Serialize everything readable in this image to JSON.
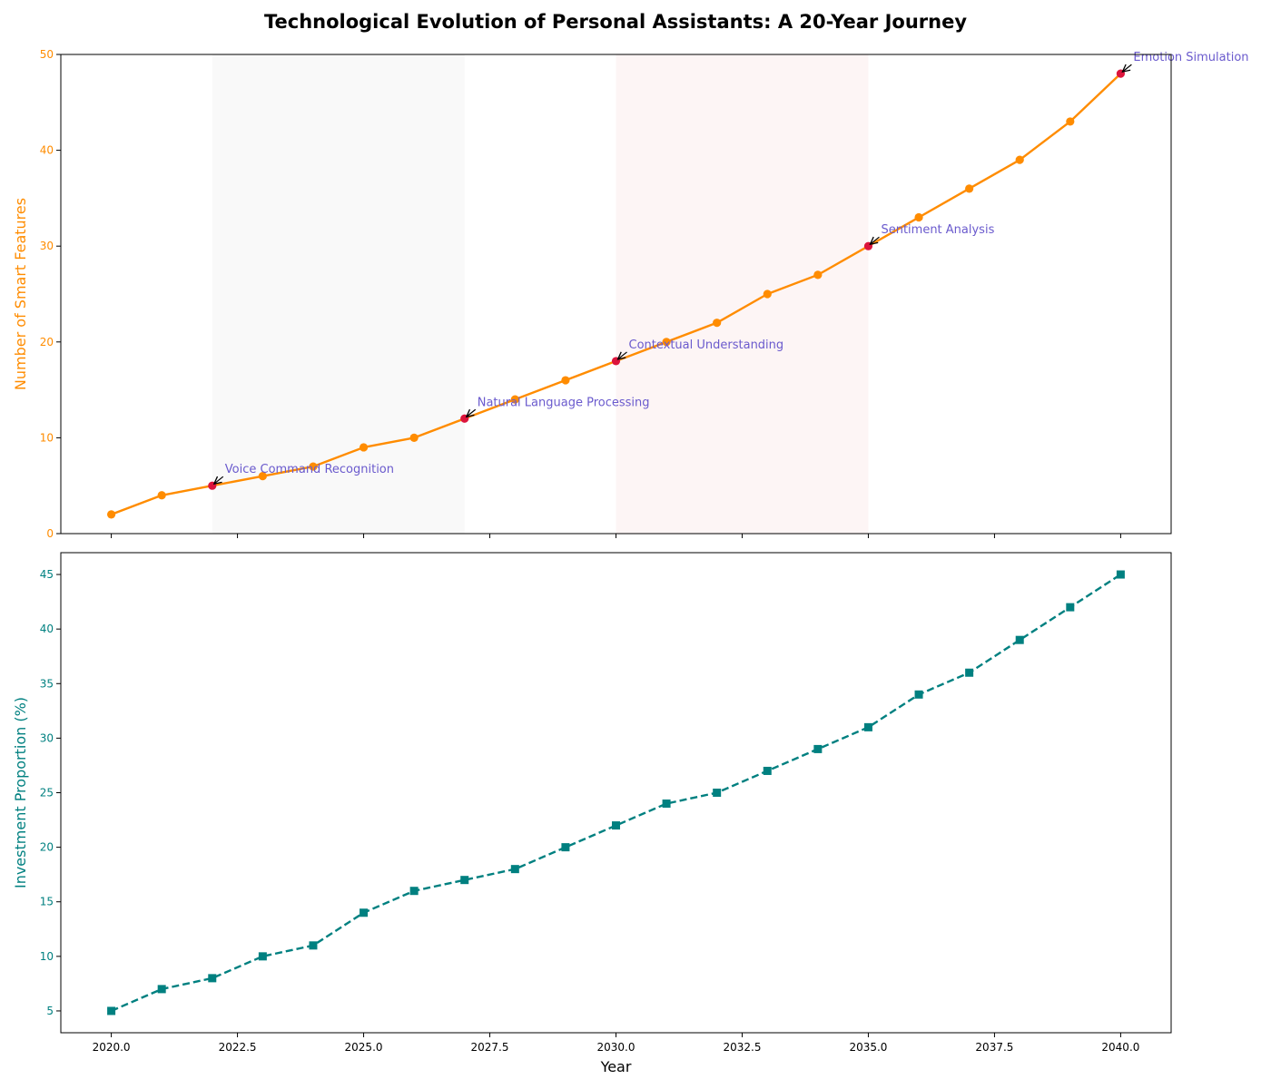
{
  "chart_data": [
    {
      "type": "line",
      "title": "Technological Evolution of Personal Assistants: A 20-Year Journey",
      "xlabel": "",
      "ylabel": "Number of Smart Features",
      "ylabel_color": "#ff8c00",
      "xlim": [
        2019,
        2041
      ],
      "ylim": [
        0,
        50
      ],
      "x_ticks": [
        2020.0,
        2022.5,
        2025.0,
        2027.5,
        2030.0,
        2032.5,
        2035.0,
        2037.5,
        2040.0
      ],
      "x_tick_labels_shown": false,
      "y_ticks": [
        0,
        10,
        20,
        30,
        40,
        50
      ],
      "y_tick_labels": [
        "0",
        "10",
        "20",
        "30",
        "40",
        "50"
      ],
      "grid": false,
      "x": [
        2020,
        2021,
        2022,
        2023,
        2024,
        2025,
        2026,
        2027,
        2028,
        2029,
        2030,
        2031,
        2032,
        2033,
        2034,
        2035,
        2036,
        2037,
        2038,
        2039,
        2040
      ],
      "series": [
        {
          "values": [
            2,
            4,
            5,
            6,
            7,
            9,
            10,
            12,
            14,
            16,
            18,
            20,
            22,
            25,
            27,
            30,
            33,
            36,
            39,
            43,
            48
          ],
          "color": "#ff8c00",
          "marker": "circle",
          "linestyle": "solid"
        }
      ],
      "highlight_color": "#dc143c",
      "shaded_spans": [
        {
          "x_start": 2022,
          "x_end": 2027,
          "color": "#d3d3d3"
        },
        {
          "x_start": 2030,
          "x_end": 2035,
          "color": "#f4b8b8"
        }
      ],
      "annotations": [
        {
          "x": 2022,
          "y": 5,
          "text": "Voice Command Recognition"
        },
        {
          "x": 2027,
          "y": 12,
          "text": "Natural Language Processing"
        },
        {
          "x": 2030,
          "y": 18,
          "text": "Contextual Understanding"
        },
        {
          "x": 2035,
          "y": 30,
          "text": "Sentiment Analysis"
        },
        {
          "x": 2040,
          "y": 48,
          "text": "Emotion Simulation"
        }
      ],
      "annotation_color": "#6a5acd"
    },
    {
      "type": "line",
      "title": "",
      "xlabel": "Year",
      "ylabel": "Investment Proportion (%)",
      "ylabel_color": "#008080",
      "xlim": [
        2019,
        2041
      ],
      "ylim": [
        3,
        47
      ],
      "x_ticks": [
        2020.0,
        2022.5,
        2025.0,
        2027.5,
        2030.0,
        2032.5,
        2035.0,
        2037.5,
        2040.0
      ],
      "x_tick_labels": [
        "2020.0",
        "2022.5",
        "2025.0",
        "2027.5",
        "2030.0",
        "2032.5",
        "2035.0",
        "2037.5",
        "2040.0"
      ],
      "x_tick_labels_shown": true,
      "y_ticks": [
        5,
        10,
        15,
        20,
        25,
        30,
        35,
        40,
        45
      ],
      "y_tick_labels": [
        "5",
        "10",
        "15",
        "20",
        "25",
        "30",
        "35",
        "40",
        "45"
      ],
      "grid": false,
      "x": [
        2020,
        2021,
        2022,
        2023,
        2024,
        2025,
        2026,
        2027,
        2028,
        2029,
        2030,
        2031,
        2032,
        2033,
        2034,
        2035,
        2036,
        2037,
        2038,
        2039,
        2040
      ],
      "series": [
        {
          "values": [
            5,
            7,
            8,
            10,
            11,
            14,
            16,
            17,
            18,
            20,
            22,
            24,
            25,
            27,
            29,
            31,
            34,
            36,
            39,
            42,
            45
          ],
          "color": "#008080",
          "marker": "square",
          "linestyle": "dashed"
        }
      ]
    }
  ]
}
